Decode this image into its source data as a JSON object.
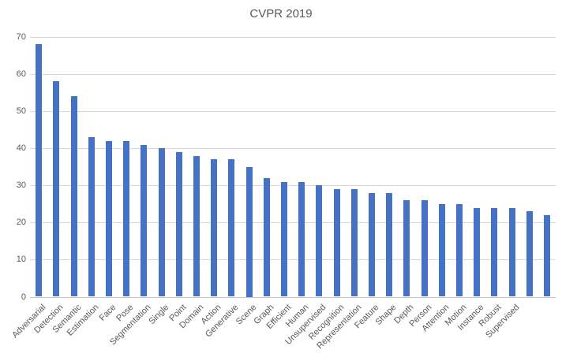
{
  "chart_data": {
    "type": "bar",
    "title": "CVPR 2019",
    "categories": [
      "Adversarial",
      "Detection",
      "Semantic",
      "Estimation",
      "Face",
      "Pose",
      "Segmentation",
      "Single",
      "Point",
      "Domain",
      "Action",
      "Generative",
      "Scene",
      "Graph",
      "Efficient",
      "Human",
      "Unsupervised",
      "Recognition",
      "Representation",
      "Feature",
      "Shape",
      "Depth",
      "Person",
      "Attention",
      "Motion",
      "Instance",
      "Robust",
      "Supervised",
      "",
      ""
    ],
    "values": [
      68,
      58,
      54,
      43,
      42,
      42,
      41,
      40,
      39,
      38,
      37,
      37,
      35,
      32,
      31,
      31,
      30,
      29,
      29,
      28,
      28,
      26,
      26,
      25,
      25,
      24,
      24,
      24,
      23,
      22
    ],
    "xlabel": "",
    "ylabel": "",
    "ylim": [
      0,
      70
    ],
    "yticks": [
      0,
      10,
      20,
      30,
      40,
      50,
      60,
      70
    ],
    "grid": true,
    "legend": "none",
    "bar_color": "#4472C4",
    "text_color": "#595959",
    "gridline_color": "#D9D9D9"
  }
}
